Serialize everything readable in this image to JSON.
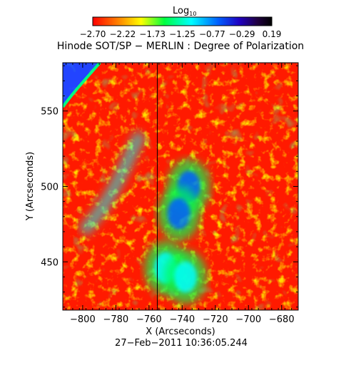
{
  "colorbar": {
    "label_base": "Log",
    "label_sub": "10",
    "ticks": [
      "−2.70",
      "−2.22",
      "−1.73",
      "−1.25",
      "−0.77",
      "−0.29",
      "0.19"
    ],
    "range": [
      -2.7,
      0.19
    ],
    "colormap": [
      "#ff0000",
      "#ff8000",
      "#ffff00",
      "#00ff40",
      "#00ffff",
      "#0060ff",
      "#2000c0",
      "#200040",
      "#000000"
    ]
  },
  "chart_data": {
    "type": "heatmap",
    "title": "Hinode SOT/SP − MERLIN : Degree of Polarization",
    "xlabel": "X (Arcseconds)",
    "ylabel": "Y (Arcseconds)",
    "xlim": [
      -812,
      -670
    ],
    "ylim": [
      418,
      582
    ],
    "x_ticks": [
      -800,
      -780,
      -760,
      -740,
      -720,
      -700,
      -680
    ],
    "x_tick_labels": [
      "−800",
      "−780",
      "−760",
      "−740",
      "−720",
      "−700",
      "−680"
    ],
    "y_ticks": [
      450,
      500,
      550
    ],
    "y_tick_labels": [
      "450",
      "500",
      "550"
    ],
    "grid": false,
    "scale": "log10",
    "value_range": [
      -2.7,
      0.19
    ],
    "dominant_value": -2.6,
    "features": [
      {
        "kind": "band",
        "value": -1.3,
        "x": [
          -800,
          -765
        ],
        "y": [
          470,
          535
        ]
      },
      {
        "kind": "region",
        "value": -1.05,
        "x": -736,
        "y": 500
      },
      {
        "kind": "region",
        "value": -1.0,
        "x": -742,
        "y": 482
      },
      {
        "kind": "region",
        "value": -1.1,
        "x": -750,
        "y": 446
      },
      {
        "kind": "region",
        "value": -1.2,
        "x": -738,
        "y": 440
      },
      {
        "kind": "corner",
        "value": -0.2,
        "x": -808,
        "y": 575
      }
    ],
    "vertical_line_x": -755,
    "timestamp": "27−Feb−2011 10:36:05.244"
  }
}
